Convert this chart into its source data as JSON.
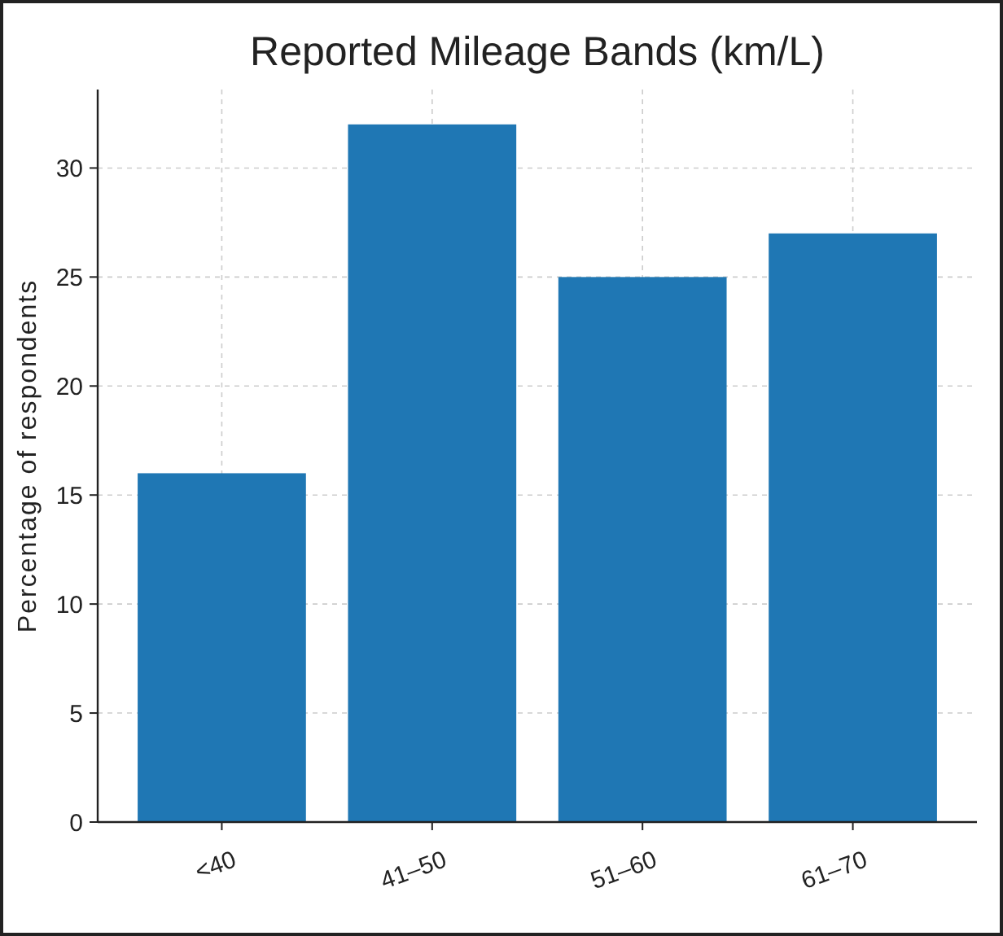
{
  "chart_data": {
    "type": "bar",
    "title": "Reported Mileage Bands (km/L)",
    "ylabel": "Percentage of respondents",
    "categories": [
      "<40",
      "41–50",
      "51–60",
      "61–70"
    ],
    "values": [
      16,
      32,
      25,
      27
    ],
    "color": "#1f77b4",
    "ylim": [
      0,
      33.6
    ],
    "yticks": [
      0,
      5,
      10,
      15,
      20,
      25,
      30
    ],
    "grid": true
  }
}
